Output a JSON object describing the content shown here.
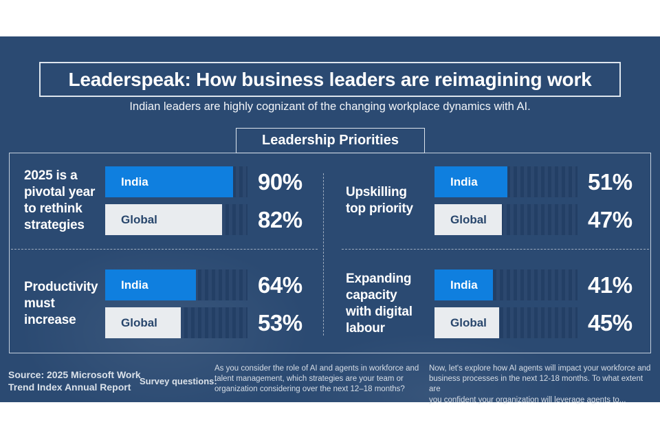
{
  "banner": {
    "title": "Leaderspeak: How business leaders are reimagining work",
    "subtitle": "Indian leaders are highly cognizant of the changing workplace dynamics with AI.",
    "section_header": "Leadership Priorities"
  },
  "colors": {
    "background": "#2b4a72",
    "india_bar": "#0f7fdf",
    "global_bar": "#e9ecef",
    "bar_track": "#25426a",
    "global_label_text": "#28466c"
  },
  "chart_data": {
    "type": "bar",
    "orientation": "horizontal",
    "title": "Leadership Priorities",
    "unit": "%",
    "xlim": [
      0,
      100
    ],
    "categories": [
      "2025 is a pivotal year to rethink strategies",
      "Upskilling top priority",
      "Productivity must increase",
      "Expanding capacity with digital labour"
    ],
    "series": [
      {
        "name": "India",
        "values": [
          90,
          51,
          64,
          41
        ]
      },
      {
        "name": "Global",
        "values": [
          82,
          47,
          53,
          45
        ]
      }
    ],
    "legend_position": "inside-bars",
    "grid": false
  },
  "quadrants": [
    {
      "label": "2025 is a\npivotal year\nto rethink\nstrategies",
      "bars": [
        {
          "group": "India",
          "value": 90,
          "display": "90%"
        },
        {
          "group": "Global",
          "value": 82,
          "display": "82%"
        }
      ]
    },
    {
      "label": "Upskilling\ntop priority",
      "bars": [
        {
          "group": "India",
          "value": 51,
          "display": "51%"
        },
        {
          "group": "Global",
          "value": 47,
          "display": "47%"
        }
      ]
    },
    {
      "label": "Productivity\nmust\nincrease",
      "bars": [
        {
          "group": "India",
          "value": 64,
          "display": "64%"
        },
        {
          "group": "Global",
          "value": 53,
          "display": "53%"
        }
      ]
    },
    {
      "label": "Expanding\ncapacity\nwith digital\nlabour",
      "bars": [
        {
          "group": "India",
          "value": 41,
          "display": "41%"
        },
        {
          "group": "Global",
          "value": 45,
          "display": "45%"
        }
      ]
    }
  ],
  "footer": {
    "source": "Source: 2025 Microsoft Work\nTrend Index Annual Report",
    "survey_label": "Survey questions:",
    "questions": [
      "As you consider the role of AI and agents in workforce and\ntalent management, which strategies are your team or\norganization considering over the next 12–18 months?",
      "Now, let's explore how AI agents will impact your workforce and\nbusiness processes in the next 12-18 months. To what extent are\nyou confident your organization will leverage agents to..."
    ]
  }
}
